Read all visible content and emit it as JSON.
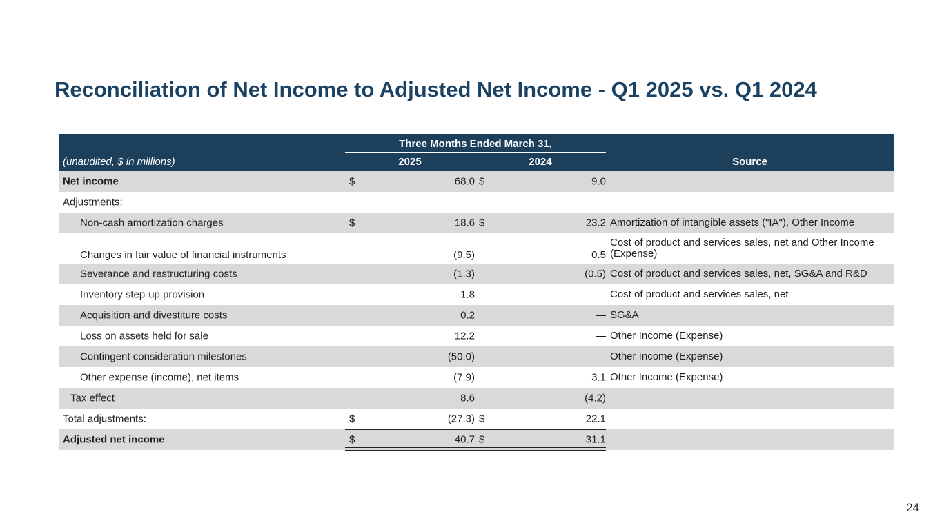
{
  "title": "Reconciliation of Net Income to Adjusted Net Income - Q1 2025 vs. Q1 2024",
  "header": {
    "group_label": "Three Months Ended March 31,",
    "unit_label": "(unaudited, $ in millions)",
    "col_2025": "2025",
    "col_2024": "2024",
    "col_source": "Source"
  },
  "rows": [
    {
      "label": "Net income",
      "d1": "$",
      "v2025": "68.0",
      "d2": "$",
      "v2024": "9.0",
      "source": ""
    },
    {
      "label": "Adjustments:",
      "d1": "",
      "v2025": "",
      "d2": "",
      "v2024": "",
      "source": ""
    },
    {
      "label": "Non-cash amortization charges",
      "d1": "$",
      "v2025": "18.6",
      "d2": "$",
      "v2024": "23.2",
      "source": "Amortization of intangible assets (\"IA\"), Other Income"
    },
    {
      "label": "Changes in fair value of financial instruments",
      "d1": "",
      "v2025": "(9.5)",
      "d2": "",
      "v2024": "0.5",
      "source": "Cost of product and services sales, net and Other Income (Expense)"
    },
    {
      "label": "Severance and restructuring costs",
      "d1": "",
      "v2025": "(1.3)",
      "d2": "",
      "v2024": "(0.5)",
      "source": "Cost of product and services sales, net, SG&A and R&D"
    },
    {
      "label": "Inventory step-up provision",
      "d1": "",
      "v2025": "1.8",
      "d2": "",
      "v2024": "—",
      "source": "Cost of product and services sales, net"
    },
    {
      "label": "Acquisition and divestiture costs",
      "d1": "",
      "v2025": "0.2",
      "d2": "",
      "v2024": "—",
      "source": "SG&A"
    },
    {
      "label": "Loss on assets held for sale",
      "d1": "",
      "v2025": "12.2",
      "d2": "",
      "v2024": "—",
      "source": "Other Income (Expense)"
    },
    {
      "label": "Contingent consideration milestones",
      "d1": "",
      "v2025": "(50.0)",
      "d2": "",
      "v2024": "—",
      "source": "Other Income (Expense)"
    },
    {
      "label": "Other expense (income), net items",
      "d1": "",
      "v2025": "(7.9)",
      "d2": "",
      "v2024": "3.1",
      "source": "Other Income (Expense)"
    },
    {
      "label": "Tax effect",
      "d1": "",
      "v2025": "8.6",
      "d2": "",
      "v2024": "(4.2)",
      "source": ""
    },
    {
      "label": "Total adjustments:",
      "d1": "$",
      "v2025": "(27.3)",
      "d2": "$",
      "v2024": "22.1",
      "source": ""
    },
    {
      "label": "Adjusted net income",
      "d1": "$",
      "v2025": "40.7",
      "d2": "$",
      "v2024": "31.1",
      "source": ""
    }
  ],
  "page_number": "24"
}
